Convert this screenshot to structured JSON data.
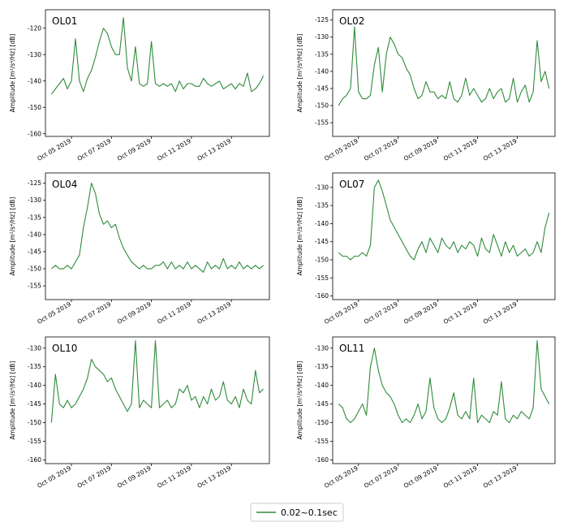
{
  "chart_data": {
    "type": "line",
    "legend": {
      "placement": "bottom-center",
      "label": "0.02~0.1sec"
    },
    "series_color": "#2e8b3a",
    "ylabel_prefix": "Amplitude [",
    "ylabel_units": "m²/s⁴/Hz",
    "ylabel_suffix": "] [dB]",
    "x_tick_labels": [
      "Oct 05 2019",
      "Oct 07 2019",
      "Oct 09 2019",
      "Oct 11 2019",
      "Oct 13 2019"
    ],
    "x_tick_days": [
      5,
      7,
      9,
      11,
      13
    ],
    "xlim_days": [
      3.7,
      14.9
    ],
    "panels": [
      {
        "title": "OL01",
        "ylim": [
          -161,
          -113
        ],
        "yticks": [
          -160,
          -150,
          -140,
          -130,
          -120
        ],
        "day": [
          4.0,
          4.2,
          4.4,
          4.6,
          4.8,
          5.0,
          5.2,
          5.4,
          5.6,
          5.8,
          6.0,
          6.2,
          6.4,
          6.6,
          6.8,
          7.0,
          7.2,
          7.4,
          7.6,
          7.8,
          8.0,
          8.2,
          8.4,
          8.6,
          8.8,
          9.0,
          9.2,
          9.4,
          9.6,
          9.8,
          10.0,
          10.2,
          10.4,
          10.6,
          10.8,
          11.0,
          11.2,
          11.4,
          11.6,
          11.8,
          12.0,
          12.2,
          12.4,
          12.6,
          12.8,
          13.0,
          13.2,
          13.4,
          13.6,
          13.8,
          14.0,
          14.2,
          14.4,
          14.6
        ],
        "amp": [
          -145,
          -143,
          -141,
          -139,
          -143,
          -140,
          -124,
          -140,
          -144,
          -139,
          -136,
          -131,
          -125,
          -120,
          -122,
          -127,
          -130,
          -130,
          -116,
          -135,
          -140,
          -127,
          -141,
          -142,
          -141,
          -125,
          -141,
          -142,
          -141,
          -142,
          -141,
          -144,
          -140,
          -143,
          -141,
          -141,
          -142,
          -142,
          -139,
          -141,
          -142,
          -141,
          -140,
          -143,
          -142,
          -141,
          -143,
          -141,
          -142,
          -137,
          -144,
          -143,
          -141,
          -138
        ]
      },
      {
        "title": "OL02",
        "ylim": [
          -159,
          -122
        ],
        "yticks": [
          -155,
          -150,
          -145,
          -140,
          -135,
          -130,
          -125
        ],
        "day": [
          4.0,
          4.2,
          4.4,
          4.6,
          4.8,
          5.0,
          5.2,
          5.4,
          5.6,
          5.8,
          6.0,
          6.2,
          6.4,
          6.6,
          6.8,
          7.0,
          7.2,
          7.4,
          7.6,
          7.8,
          8.0,
          8.2,
          8.4,
          8.6,
          8.8,
          9.0,
          9.2,
          9.4,
          9.6,
          9.8,
          10.0,
          10.2,
          10.4,
          10.6,
          10.8,
          11.0,
          11.2,
          11.4,
          11.6,
          11.8,
          12.0,
          12.2,
          12.4,
          12.6,
          12.8,
          13.0,
          13.2,
          13.4,
          13.6,
          13.8,
          14.0,
          14.2,
          14.4,
          14.6
        ],
        "amp": [
          -150,
          -148,
          -147,
          -145,
          -127,
          -146,
          -148,
          -148,
          -147,
          -138,
          -133,
          -146,
          -135,
          -130,
          -132,
          -135,
          -136,
          -139,
          -141,
          -145,
          -148,
          -147,
          -143,
          -146,
          -146,
          -148,
          -147,
          -148,
          -143,
          -148,
          -149,
          -147,
          -142,
          -147,
          -145,
          -147,
          -149,
          -148,
          -145,
          -148,
          -146,
          -145,
          -149,
          -148,
          -142,
          -149,
          -146,
          -144,
          -149,
          -146,
          -131,
          -143,
          -140,
          -145
        ]
      },
      {
        "title": "OL04",
        "ylim": [
          -159,
          -122
        ],
        "yticks": [
          -155,
          -150,
          -145,
          -140,
          -135,
          -130,
          -125
        ],
        "day": [
          4.0,
          4.2,
          4.4,
          4.6,
          4.8,
          5.0,
          5.2,
          5.4,
          5.6,
          5.8,
          6.0,
          6.2,
          6.4,
          6.6,
          6.8,
          7.0,
          7.2,
          7.4,
          7.6,
          7.8,
          8.0,
          8.2,
          8.4,
          8.6,
          8.8,
          9.0,
          9.2,
          9.4,
          9.6,
          9.8,
          10.0,
          10.2,
          10.4,
          10.6,
          10.8,
          11.0,
          11.2,
          11.4,
          11.6,
          11.8,
          12.0,
          12.2,
          12.4,
          12.6,
          12.8,
          13.0,
          13.2,
          13.4,
          13.6,
          13.8,
          14.0,
          14.2,
          14.4,
          14.6
        ],
        "amp": [
          -150,
          -149,
          -150,
          -150,
          -149,
          -150,
          -148,
          -146,
          -138,
          -132,
          -125,
          -128,
          -134,
          -137,
          -136,
          -138,
          -137,
          -141,
          -144,
          -146,
          -148,
          -149,
          -150,
          -149,
          -150,
          -150,
          -149,
          -149,
          -148,
          -150,
          -148,
          -150,
          -149,
          -150,
          -148,
          -150,
          -149,
          -150,
          -151,
          -148,
          -150,
          -149,
          -150,
          -147,
          -150,
          -149,
          -150,
          -148,
          -150,
          -149,
          -150,
          -149,
          -150,
          -149
        ]
      },
      {
        "title": "OL07",
        "ylim": [
          -161,
          -126
        ],
        "yticks": [
          -160,
          -155,
          -150,
          -145,
          -140,
          -135,
          -130
        ],
        "day": [
          4.0,
          4.2,
          4.4,
          4.6,
          4.8,
          5.0,
          5.2,
          5.4,
          5.6,
          5.8,
          6.0,
          6.2,
          6.4,
          6.6,
          6.8,
          7.0,
          7.2,
          7.4,
          7.6,
          7.8,
          8.0,
          8.2,
          8.4,
          8.6,
          8.8,
          9.0,
          9.2,
          9.4,
          9.6,
          9.8,
          10.0,
          10.2,
          10.4,
          10.6,
          10.8,
          11.0,
          11.2,
          11.4,
          11.6,
          11.8,
          12.0,
          12.2,
          12.4,
          12.6,
          12.8,
          13.0,
          13.2,
          13.4,
          13.6,
          13.8,
          14.0,
          14.2,
          14.4,
          14.6
        ],
        "amp": [
          -148,
          -149,
          -149,
          -150,
          -149,
          -149,
          -148,
          -149,
          -146,
          -130,
          -128,
          -131,
          -135,
          -139,
          -141,
          -143,
          -145,
          -147,
          -149,
          -150,
          -147,
          -145,
          -148,
          -144,
          -146,
          -148,
          -144,
          -146,
          -147,
          -145,
          -148,
          -146,
          -147,
          -145,
          -146,
          -149,
          -144,
          -147,
          -148,
          -143,
          -146,
          -149,
          -145,
          -148,
          -146,
          -149,
          -148,
          -147,
          -149,
          -148,
          -145,
          -148,
          -141,
          -137
        ]
      },
      {
        "title": "OL10",
        "ylim": [
          -161,
          -127
        ],
        "yticks": [
          -160,
          -155,
          -150,
          -145,
          -140,
          -135,
          -130
        ],
        "day": [
          4.0,
          4.2,
          4.4,
          4.6,
          4.8,
          5.0,
          5.2,
          5.4,
          5.6,
          5.8,
          6.0,
          6.2,
          6.4,
          6.6,
          6.8,
          7.0,
          7.2,
          7.4,
          7.6,
          7.8,
          8.0,
          8.2,
          8.4,
          8.6,
          8.8,
          9.0,
          9.2,
          9.4,
          9.6,
          9.8,
          10.0,
          10.2,
          10.4,
          10.6,
          10.8,
          11.0,
          11.2,
          11.4,
          11.6,
          11.8,
          12.0,
          12.2,
          12.4,
          12.6,
          12.8,
          13.0,
          13.2,
          13.4,
          13.6,
          13.8,
          14.0,
          14.2,
          14.4,
          14.6
        ],
        "amp": [
          -150,
          -137,
          -145,
          -146,
          -144,
          -146,
          -145,
          -143,
          -141,
          -138,
          -133,
          -135,
          -136,
          -137,
          -139,
          -138,
          -141,
          -143,
          -145,
          -147,
          -145,
          -128,
          -146,
          -144,
          -145,
          -146,
          -128,
          -146,
          -145,
          -144,
          -146,
          -145,
          -141,
          -142,
          -140,
          -144,
          -143,
          -146,
          -143,
          -145,
          -141,
          -144,
          -143,
          -139,
          -144,
          -145,
          -143,
          -146,
          -141,
          -144,
          -145,
          -136,
          -142,
          -141
        ]
      },
      {
        "title": "OL11",
        "ylim": [
          -161,
          -127
        ],
        "yticks": [
          -160,
          -155,
          -150,
          -145,
          -140,
          -135,
          -130
        ],
        "day": [
          4.0,
          4.2,
          4.4,
          4.6,
          4.8,
          5.0,
          5.2,
          5.4,
          5.6,
          5.8,
          6.0,
          6.2,
          6.4,
          6.6,
          6.8,
          7.0,
          7.2,
          7.4,
          7.6,
          7.8,
          8.0,
          8.2,
          8.4,
          8.6,
          8.8,
          9.0,
          9.2,
          9.4,
          9.6,
          9.8,
          10.0,
          10.2,
          10.4,
          10.6,
          10.8,
          11.0,
          11.2,
          11.4,
          11.6,
          11.8,
          12.0,
          12.2,
          12.4,
          12.6,
          12.8,
          13.0,
          13.2,
          13.4,
          13.6,
          13.8,
          14.0,
          14.2,
          14.4,
          14.6
        ],
        "amp": [
          -145,
          -146,
          -149,
          -150,
          -149,
          -147,
          -145,
          -148,
          -135,
          -130,
          -136,
          -140,
          -142,
          -143,
          -145,
          -148,
          -150,
          -149,
          -150,
          -148,
          -145,
          -149,
          -147,
          -138,
          -146,
          -149,
          -150,
          -149,
          -146,
          -142,
          -148,
          -149,
          -147,
          -149,
          -138,
          -150,
          -148,
          -149,
          -150,
          -147,
          -148,
          -139,
          -149,
          -150,
          -148,
          -149,
          -147,
          -148,
          -149,
          -146,
          -128,
          -141,
          -143,
          -145
        ]
      }
    ]
  }
}
